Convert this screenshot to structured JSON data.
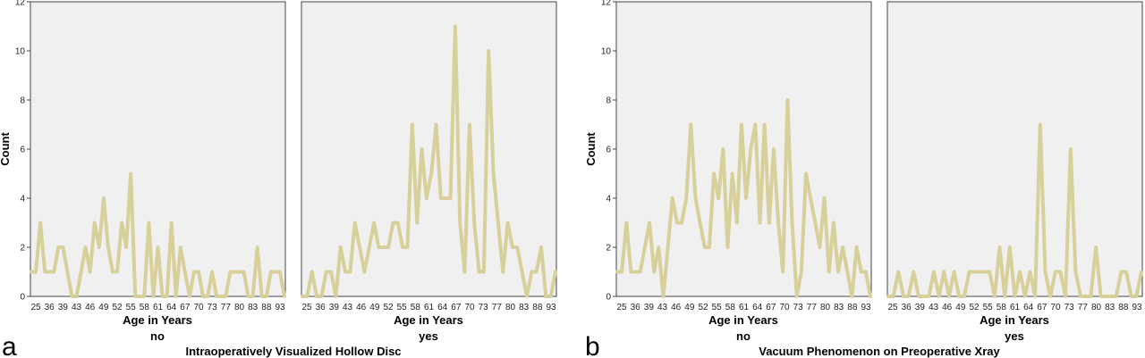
{
  "chart_data": [
    {
      "type": "line",
      "panel_label": "a",
      "title": "Intraoperatively Visualized Hollow Disc",
      "ylabel": "Count",
      "xlabel": "Age in Years",
      "ylim": [
        0,
        12
      ],
      "yticks": [
        0,
        2,
        4,
        6,
        8,
        10,
        12
      ],
      "x_tick_labels": [
        "25",
        "36",
        "39",
        "43",
        "46",
        "49",
        "52",
        "55",
        "58",
        "61",
        "64",
        "67",
        "70",
        "73",
        "77",
        "80",
        "83",
        "88",
        "93"
      ],
      "grid": false,
      "line_color": "#d8d09a",
      "plot_bg": "#f0f0f0",
      "facets": [
        {
          "label": "no",
          "values": [
            1,
            1,
            3,
            1,
            1,
            1,
            2,
            2,
            1,
            0,
            0,
            1,
            2,
            1,
            3,
            2,
            4,
            2,
            1,
            1,
            3,
            2,
            5,
            0,
            0,
            0,
            3,
            0,
            2,
            0,
            0,
            3,
            0,
            2,
            1,
            0,
            1,
            1,
            0,
            0,
            1,
            0,
            0,
            0,
            1,
            1,
            1,
            1,
            0,
            0,
            2,
            0,
            0,
            1,
            1,
            1,
            0
          ]
        },
        {
          "label": "yes",
          "values": [
            0,
            0,
            1,
            0,
            0,
            1,
            1,
            0,
            2,
            1,
            1,
            3,
            2,
            1,
            2,
            3,
            2,
            2,
            2,
            3,
            3,
            2,
            2,
            7,
            3,
            6,
            4,
            5,
            7,
            4,
            4,
            4,
            11,
            3,
            1,
            7,
            3,
            1,
            1,
            10,
            5,
            3,
            1,
            3,
            2,
            2,
            1,
            0,
            1,
            1,
            2,
            0,
            0,
            1
          ]
        }
      ]
    },
    {
      "type": "line",
      "panel_label": "b",
      "title": "Vacuum Phenomenon on Preoperative Xray",
      "ylabel": "Count",
      "xlabel": "Age in Years",
      "ylim": [
        0,
        12
      ],
      "yticks": [
        0,
        2,
        4,
        6,
        8,
        10,
        12
      ],
      "x_tick_labels": [
        "25",
        "36",
        "39",
        "43",
        "46",
        "49",
        "52",
        "55",
        "58",
        "61",
        "64",
        "67",
        "70",
        "73",
        "77",
        "80",
        "83",
        "88",
        "93"
      ],
      "grid": false,
      "line_color": "#d8d09a",
      "plot_bg": "#f0f0f0",
      "facets": [
        {
          "label": "no",
          "values": [
            1,
            1,
            3,
            1,
            1,
            1,
            2,
            3,
            1,
            2,
            0,
            2,
            4,
            3,
            3,
            4,
            7,
            4,
            3,
            2,
            2,
            5,
            4,
            6,
            2,
            5,
            3,
            7,
            4,
            6,
            7,
            3,
            7,
            3,
            6,
            3,
            1,
            8,
            3,
            0,
            1,
            5,
            4,
            3,
            2,
            4,
            1,
            3,
            1,
            2,
            1,
            0,
            2,
            1,
            1,
            0
          ]
        },
        {
          "label": "yes",
          "values": [
            0,
            0,
            1,
            0,
            0,
            1,
            0,
            0,
            0,
            1,
            0,
            1,
            0,
            1,
            0,
            0,
            1,
            1,
            1,
            1,
            1,
            0,
            2,
            0,
            2,
            0,
            1,
            0,
            1,
            0,
            7,
            1,
            0,
            1,
            1,
            0,
            6,
            1,
            0,
            0,
            0,
            2,
            0,
            0,
            0,
            0,
            1,
            1,
            0,
            0,
            1
          ]
        }
      ]
    }
  ]
}
